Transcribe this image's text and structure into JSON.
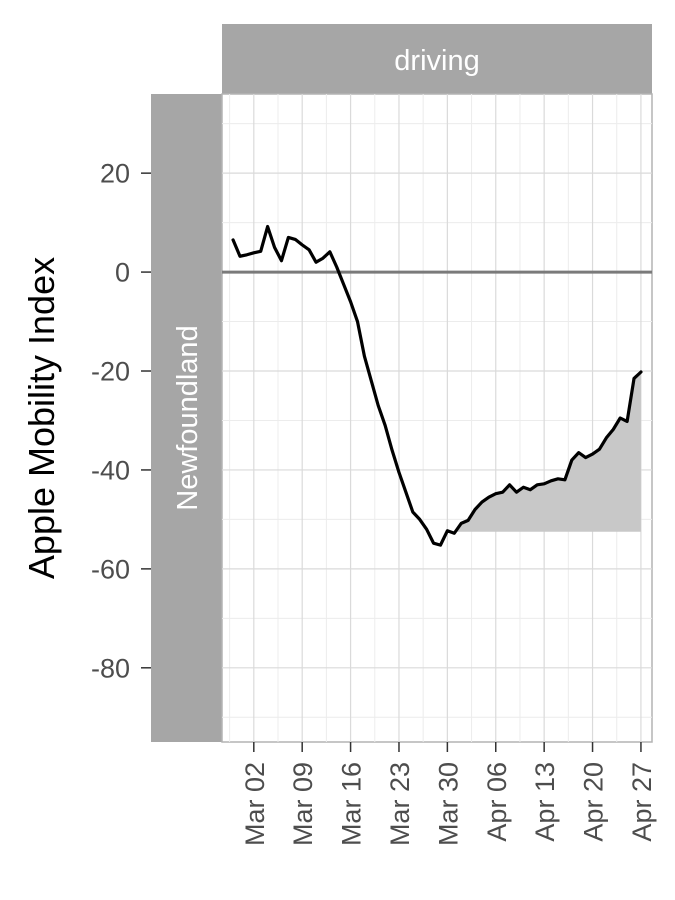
{
  "chart_data": {
    "type": "line",
    "ylabel": "Apple Mobility Index",
    "facet_column": "driving",
    "facet_row": "Newfoundland",
    "ylim": [
      -95,
      36
    ],
    "yticks": [
      20,
      0,
      -20,
      -40,
      -60,
      -80
    ],
    "ytick_labels": [
      "20",
      "0",
      "-20",
      "-40",
      "-60",
      "-80"
    ],
    "xticks": [
      "Mar 02",
      "Mar 09",
      "Mar 16",
      "Mar 23",
      "Mar 30",
      "Apr 06",
      "Apr 13",
      "Apr 20",
      "Apr 27"
    ],
    "baseline": 0,
    "shaded_floor": -52.5,
    "shade_from": "Mar 31",
    "grid": true,
    "series": [
      {
        "x": [
          "Feb 28",
          "Feb 29",
          "Mar 01",
          "Mar 02",
          "Mar 03",
          "Mar 04",
          "Mar 05",
          "Mar 06",
          "Mar 07",
          "Mar 08",
          "Mar 09",
          "Mar 10",
          "Mar 11",
          "Mar 12",
          "Mar 13",
          "Mar 14",
          "Mar 15",
          "Mar 16",
          "Mar 17",
          "Mar 18",
          "Mar 19",
          "Mar 20",
          "Mar 21",
          "Mar 22",
          "Mar 23",
          "Mar 24",
          "Mar 25",
          "Mar 26",
          "Mar 27",
          "Mar 28",
          "Mar 29",
          "Mar 30",
          "Mar 31",
          "Apr 01",
          "Apr 02",
          "Apr 03",
          "Apr 04",
          "Apr 05",
          "Apr 06",
          "Apr 07",
          "Apr 08",
          "Apr 09",
          "Apr 10",
          "Apr 11",
          "Apr 12",
          "Apr 13",
          "Apr 14",
          "Apr 15",
          "Apr 16",
          "Apr 17",
          "Apr 18",
          "Apr 19",
          "Apr 20",
          "Apr 21",
          "Apr 22",
          "Apr 23",
          "Apr 24",
          "Apr 25",
          "Apr 26",
          "Apr 27"
        ],
        "values": [
          6.5,
          3.2,
          3.5,
          3.9,
          4.2,
          9.2,
          5.0,
          2.3,
          7.0,
          6.6,
          5.5,
          4.5,
          2.0,
          2.8,
          4.1,
          1.0,
          -2.5,
          -6.0,
          -10.0,
          -17.0,
          -22.0,
          -27.0,
          -31.0,
          -36.0,
          -40.5,
          -44.5,
          -48.5,
          -50.0,
          -52.0,
          -54.8,
          -55.2,
          -52.3,
          -52.8,
          -50.8,
          -50.2,
          -48.0,
          -46.5,
          -45.5,
          -44.8,
          -44.5,
          -43.0,
          -44.5,
          -43.5,
          -44.0,
          -43.0,
          -42.8,
          -42.2,
          -41.8,
          -42.0,
          -38.0,
          -36.5,
          -37.5,
          -36.8,
          -35.8,
          -33.5,
          -31.8,
          -29.5,
          -30.2,
          -21.5,
          -20.2
        ]
      }
    ]
  }
}
